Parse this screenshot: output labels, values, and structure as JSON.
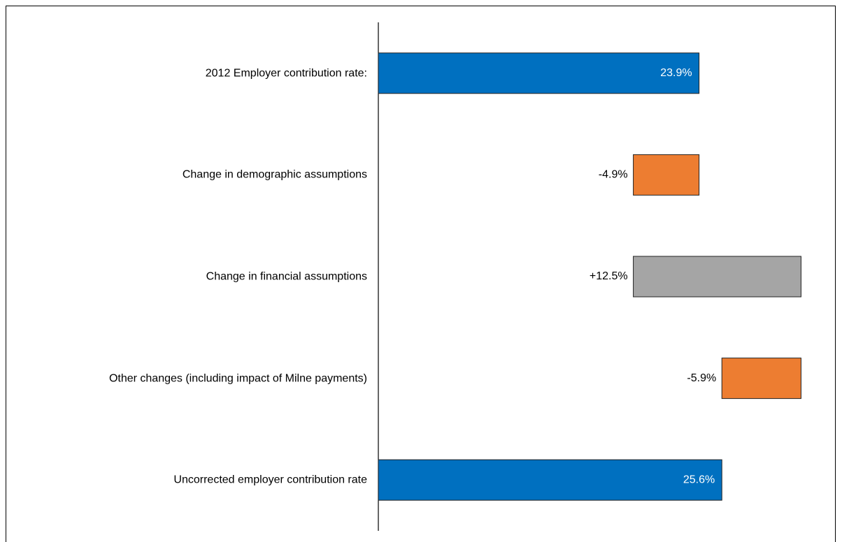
{
  "chart_data": {
    "type": "waterfall",
    "categories": [
      "2012 Employer contribution rate:",
      "Change in demographic assumptions",
      "Change in financial assumptions",
      "Other changes (including impact of Milne payments)",
      "Uncorrected employer contribution rate"
    ],
    "values": [
      23.9,
      -4.9,
      12.5,
      -5.9,
      25.6
    ],
    "value_labels": [
      "23.9%",
      "-4.9%",
      "+12.5%",
      "-5.9%",
      "25.6%"
    ],
    "total_bars": [
      true,
      false,
      false,
      false,
      true
    ],
    "colors": [
      "#0070c0",
      "#ed7d31",
      "#a5a5a5",
      "#ed7d31",
      "#0070c0"
    ],
    "xlim": [
      0,
      34.5
    ]
  }
}
